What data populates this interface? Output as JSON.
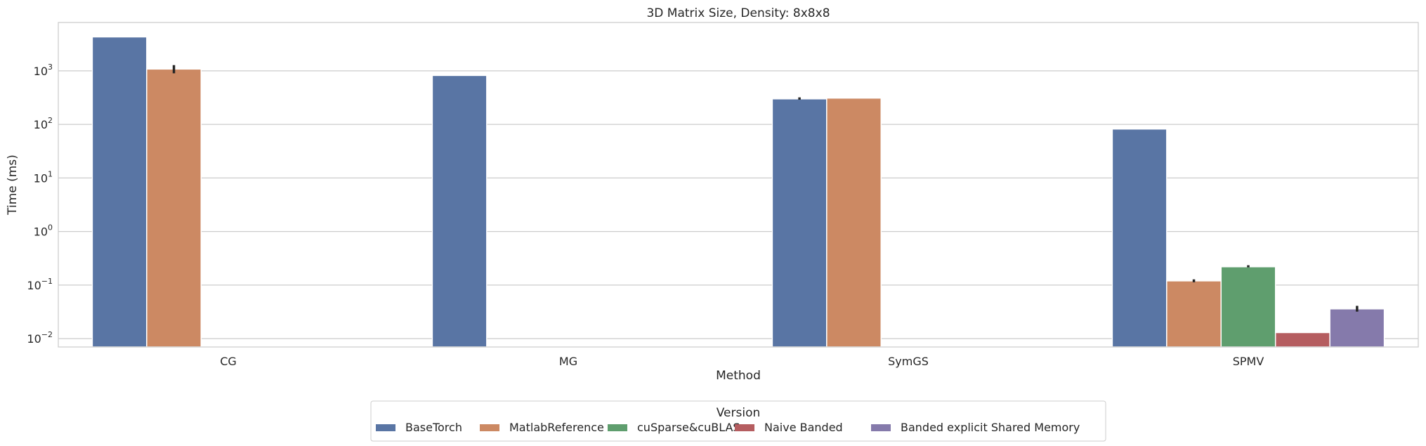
{
  "chart_data": {
    "type": "bar",
    "title": "3D Matrix Size, Density: 8x8x8",
    "xlabel": "Method",
    "ylabel": "Time (ms)",
    "yscale": "log",
    "ylim": [
      0.007,
      8000
    ],
    "categories": [
      "CG",
      "MG",
      "SymGS",
      "SPMV"
    ],
    "series": [
      {
        "name": "BaseTorch",
        "color": "#5975a4",
        "values": [
          4300,
          820,
          300,
          82
        ]
      },
      {
        "name": "MatlabReference",
        "color": "#cc8963",
        "values": [
          1080,
          null,
          310,
          0.12
        ]
      },
      {
        "name": "cuSparse&cuBLAS",
        "color": "#5f9e6e",
        "values": [
          null,
          null,
          null,
          0.22
        ]
      },
      {
        "name": "Naive Banded",
        "color": "#b55d60",
        "values": [
          null,
          null,
          null,
          0.013
        ]
      },
      {
        "name": "Banded explicit Shared Memory",
        "color": "#857aab",
        "values": [
          null,
          null,
          null,
          0.036
        ]
      }
    ],
    "error_bars": [
      {
        "series": "BaseTorch",
        "category": "SymGS",
        "low": 290,
        "high": 320
      },
      {
        "series": "MatlabReference",
        "category": "CG",
        "low": 900,
        "high": 1280
      },
      {
        "series": "MatlabReference",
        "category": "SPMV",
        "low": 0.113,
        "high": 0.128
      },
      {
        "series": "cuSparse&cuBLAS",
        "category": "SPMV",
        "low": 0.215,
        "high": 0.235
      },
      {
        "series": "Banded explicit Shared Memory",
        "category": "SPMV",
        "low": 0.032,
        "high": 0.041
      }
    ],
    "yticks": [
      {
        "exp": "−2",
        "value": 0.01
      },
      {
        "exp": "−1",
        "value": 0.1
      },
      {
        "exp": "0",
        "value": 1
      },
      {
        "exp": "1",
        "value": 10
      },
      {
        "exp": "2",
        "value": 100
      },
      {
        "exp": "3",
        "value": 1000
      }
    ],
    "ytick_base": "10",
    "legend": {
      "title": "Version",
      "placement": "bottom-center"
    },
    "grid": true
  }
}
